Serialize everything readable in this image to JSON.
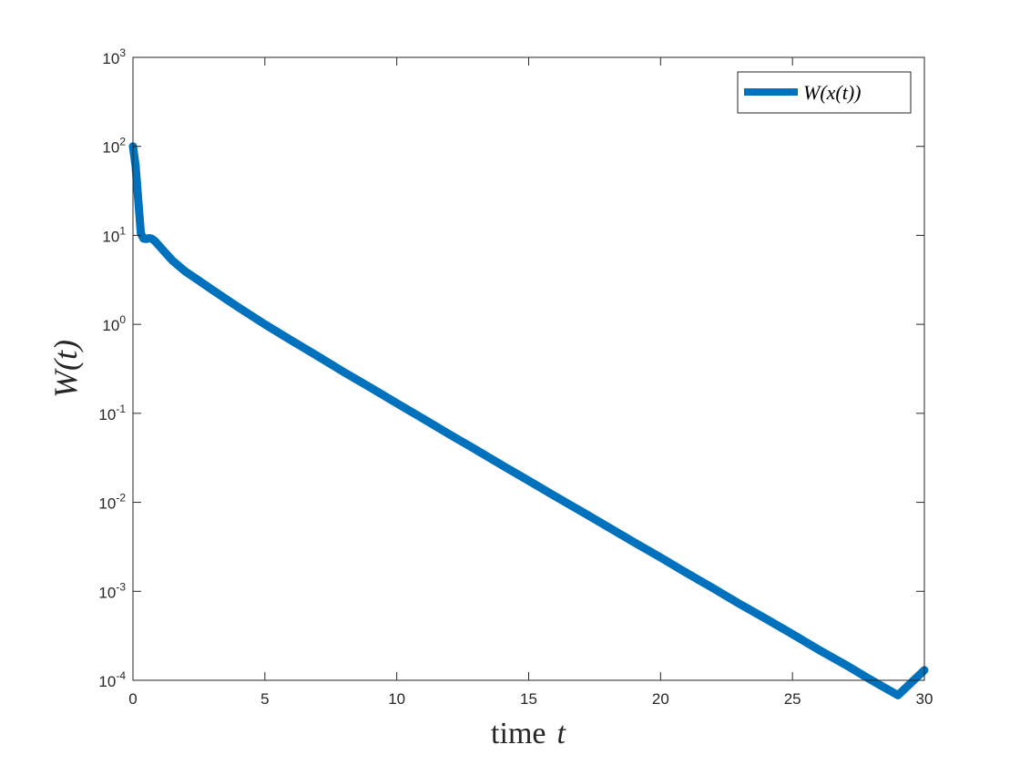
{
  "chart_data": {
    "type": "line",
    "title": "",
    "xlabel": "time",
    "xlabel_var": "t",
    "ylabel": "W(t)",
    "yscale": "log",
    "xlim": [
      0,
      30
    ],
    "ylim": [
      0.0001,
      1000
    ],
    "xticks": [
      0,
      5,
      10,
      15,
      20,
      25,
      30
    ],
    "yticks": [
      {
        "value": 0.0001,
        "base": "10",
        "exp": "-4"
      },
      {
        "value": 0.001,
        "base": "10",
        "exp": "-3"
      },
      {
        "value": 0.01,
        "base": "10",
        "exp": "-2"
      },
      {
        "value": 0.1,
        "base": "10",
        "exp": "-1"
      },
      {
        "value": 1,
        "base": "10",
        "exp": "0"
      },
      {
        "value": 10,
        "base": "10",
        "exp": "1"
      },
      {
        "value": 100,
        "base": "10",
        "exp": "2"
      },
      {
        "value": 1000,
        "base": "10",
        "exp": "3"
      }
    ],
    "grid": false,
    "legend_position": "top-right",
    "series": [
      {
        "name": "W(x(t))",
        "color": "#0072BD",
        "x": [
          0,
          0.1,
          0.2,
          0.3,
          0.4,
          0.5,
          0.6,
          0.7,
          0.8,
          1.0,
          1.2,
          1.5,
          2,
          2.5,
          3,
          4,
          5,
          6,
          7,
          8,
          9,
          10,
          11,
          12,
          13,
          14,
          15,
          16,
          17,
          18,
          19,
          20,
          21,
          22,
          23,
          24,
          25,
          26,
          27,
          28,
          29,
          30
        ],
        "y": [
          100,
          60,
          25,
          10.5,
          9.2,
          9.1,
          9.3,
          9.2,
          8.8,
          7.6,
          6.5,
          5.2,
          3.9,
          3.1,
          2.45,
          1.55,
          1.0,
          0.66,
          0.44,
          0.29,
          0.195,
          0.13,
          0.087,
          0.058,
          0.039,
          0.026,
          0.0175,
          0.0117,
          0.0079,
          0.0053,
          0.00355,
          0.0024,
          0.0016,
          0.00108,
          0.00072,
          0.00049,
          0.00033,
          0.00022,
          0.00015,
          0.0001,
          6.8e-05,
          0.00013
        ]
      }
    ]
  }
}
